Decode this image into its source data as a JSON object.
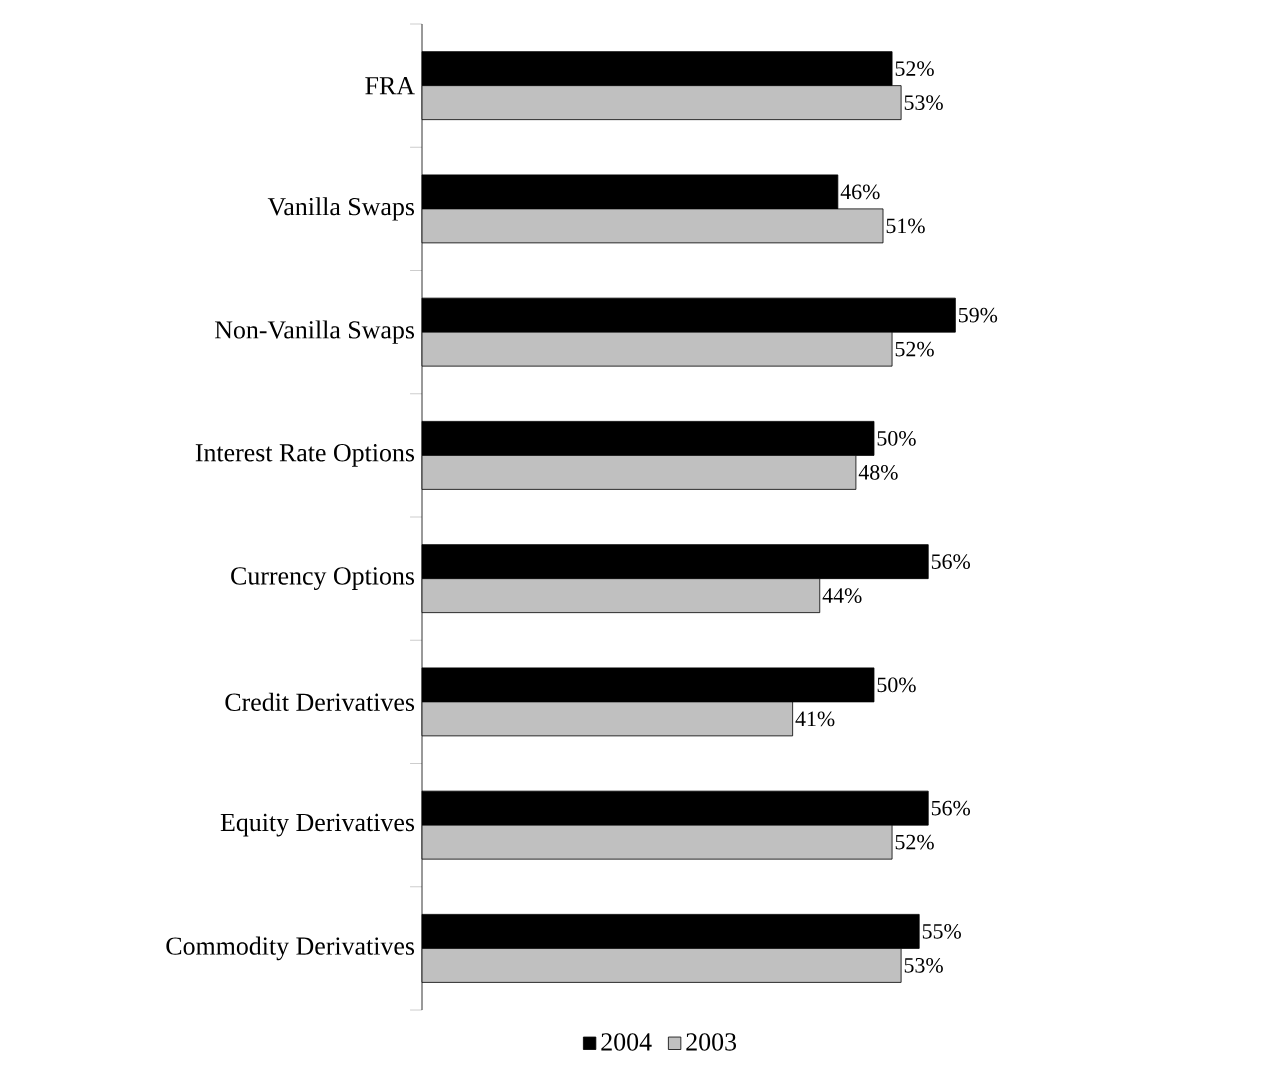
{
  "chart_data": {
    "type": "bar",
    "orientation": "horizontal",
    "categories": [
      "FRA",
      "Vanilla Swaps",
      "Non-Vanilla Swaps",
      "Interest Rate Options",
      "Currency Options",
      "Credit Derivatives",
      "Equity Derivatives",
      "Commodity Derivatives"
    ],
    "series": [
      {
        "name": "2004",
        "color": "#000000",
        "values": [
          52,
          46,
          59,
          50,
          56,
          50,
          56,
          55
        ],
        "value_labels": [
          "52%",
          "46%",
          "59%",
          "50%",
          "56%",
          "50%",
          "56%",
          "55%"
        ]
      },
      {
        "name": "2003",
        "color": "#c0c0c0",
        "values": [
          53,
          51,
          52,
          48,
          44,
          41,
          52,
          53
        ],
        "value_labels": [
          "53%",
          "51%",
          "52%",
          "48%",
          "44%",
          "41%",
          "52%",
          "53%"
        ]
      }
    ],
    "legend": "bottom"
  }
}
